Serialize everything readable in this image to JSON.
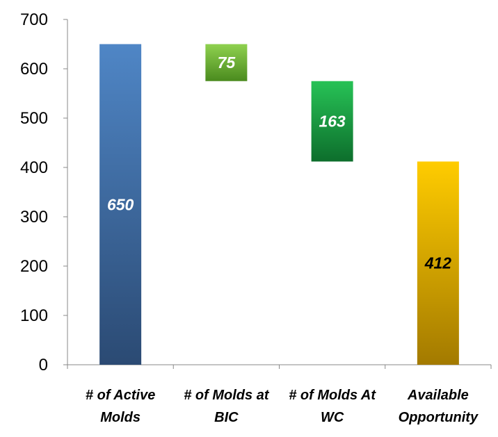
{
  "chart_data": {
    "type": "bar",
    "subtype": "waterfall",
    "title": "",
    "xlabel": "",
    "ylabel": "",
    "ylim": [
      0,
      700
    ],
    "yticks": [
      0,
      100,
      200,
      300,
      400,
      500,
      600,
      700
    ],
    "grid": false,
    "legend": "none",
    "categories": [
      [
        "# of Active",
        "Molds"
      ],
      [
        "# of Molds at",
        "BIC"
      ],
      [
        "# of Molds At",
        "WC"
      ],
      [
        "Available",
        "Opportunity"
      ]
    ],
    "bars": [
      {
        "label": "650",
        "value": 650,
        "low": 0,
        "high": 650,
        "color_top": "#4f86c6",
        "color_bottom": "#2b4a73",
        "label_color": "#ffffff"
      },
      {
        "label": "75",
        "value": 75,
        "low": 575,
        "high": 650,
        "color_top": "#8fd14f",
        "color_bottom": "#4a8a1e",
        "label_color": "#ffffff"
      },
      {
        "label": "163",
        "value": 163,
        "low": 412,
        "high": 575,
        "color_top": "#27c256",
        "color_bottom": "#0d6e2c",
        "label_color": "#ffffff"
      },
      {
        "label": "412",
        "value": 412,
        "low": 0,
        "high": 412,
        "color_top": "#ffcc00",
        "color_bottom": "#a37a00",
        "label_color": "#000000"
      }
    ]
  }
}
